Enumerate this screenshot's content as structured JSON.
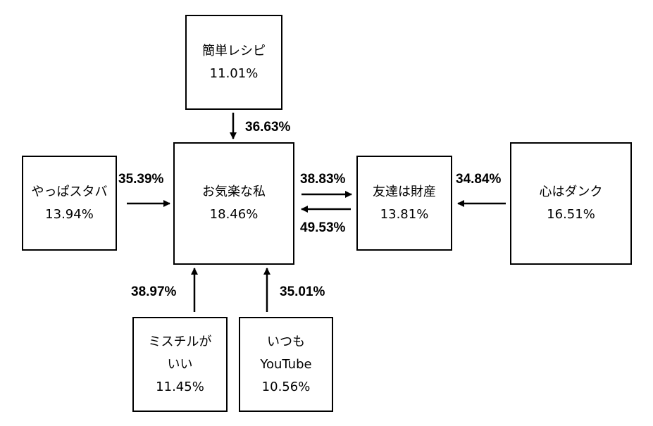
{
  "nodes": {
    "kantan_recipe": {
      "label": "簡単レシピ",
      "value": "11.01%"
    },
    "yappa_starba": {
      "label": "やっぱスタバ",
      "value": "13.94%"
    },
    "okiraku_watashi": {
      "label": "お気楽な私",
      "value": "18.46%"
    },
    "tomodachi_zaisan": {
      "label": "友達は財産",
      "value": "13.81%"
    },
    "kokoro_dunk": {
      "label": "心はダンク",
      "value": "16.51%"
    },
    "mischil": {
      "label_line1": "ミスチルが",
      "label_line2": "いい",
      "value": "11.45%"
    },
    "itsumo_youtube": {
      "label_line1": "いつも",
      "label_line2": "YouTube",
      "value": "10.56%"
    }
  },
  "edges": {
    "kantan_to_okiraku": "36.63%",
    "yappa_to_okiraku": "35.39%",
    "okiraku_to_tomodachi": "38.83%",
    "tomodachi_to_okiraku": "49.53%",
    "kokoro_to_tomodachi": "34.84%",
    "mischil_to_okiraku": "38.97%",
    "youtube_to_okiraku": "35.01%"
  }
}
